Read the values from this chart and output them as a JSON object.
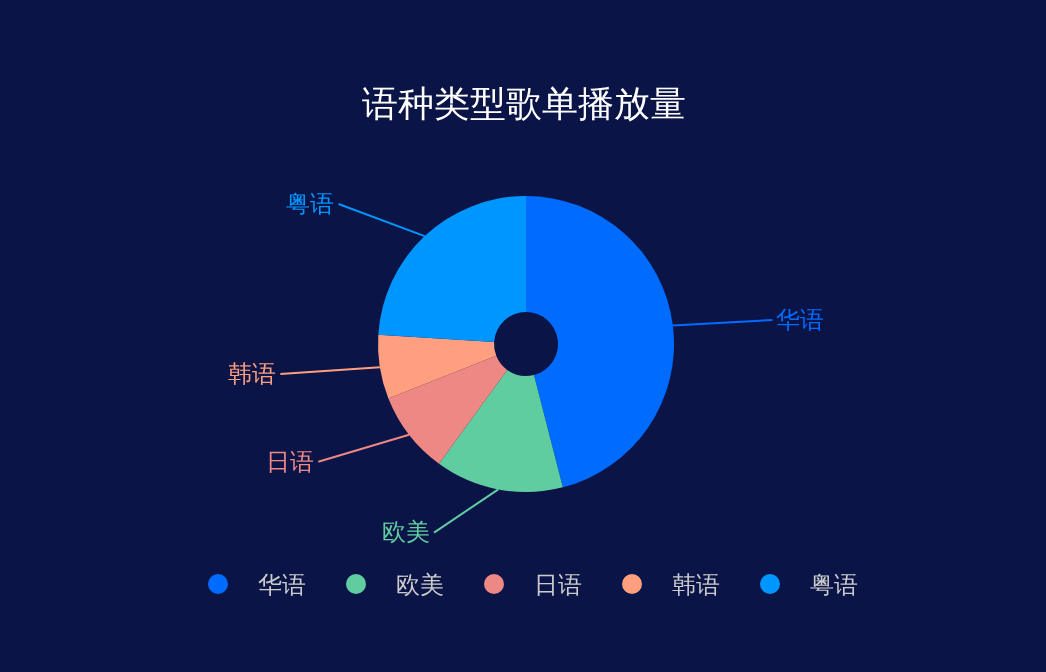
{
  "chart_data": {
    "type": "donut",
    "title": "语种类型歌单播放量",
    "categories": [
      "华语",
      "欧美",
      "日语",
      "韩语",
      "粤语"
    ],
    "values": [
      46,
      14,
      9,
      7,
      24
    ],
    "colors": [
      "#006cff",
      "#60cda0",
      "#ed8884",
      "#ff9f7f",
      "#0096ff"
    ],
    "legend": "bottom"
  }
}
